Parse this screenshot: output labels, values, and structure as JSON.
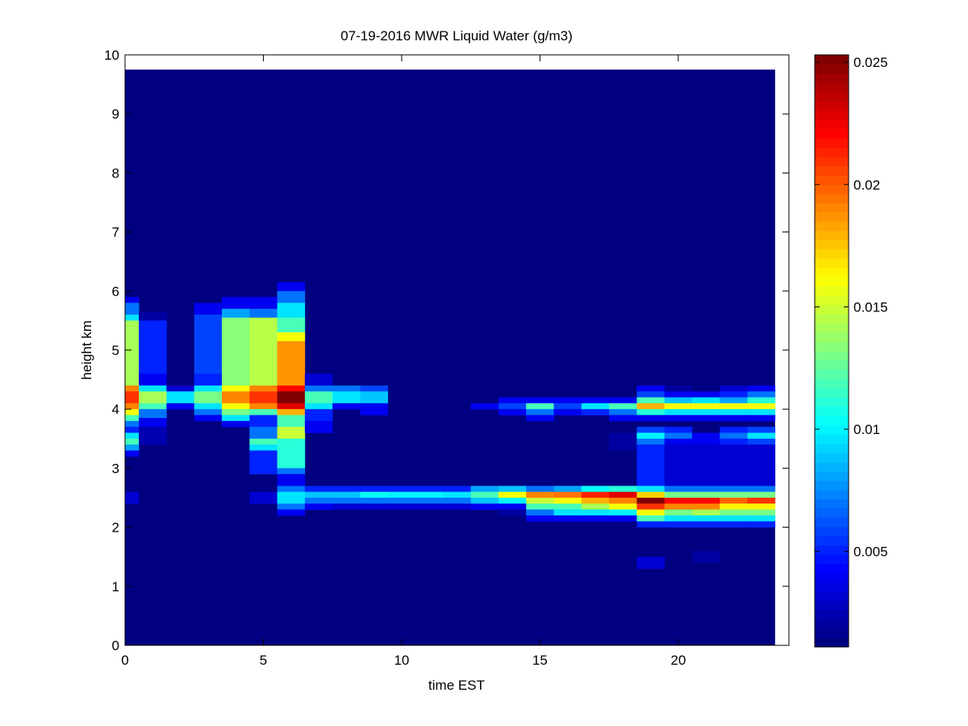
{
  "chart_data": {
    "type": "heatmap",
    "title": "07-19-2016 MWR Liquid Water (g/m3)",
    "xlabel": "time EST",
    "ylabel": "height km",
    "xlim": [
      0,
      24
    ],
    "ylim": [
      0,
      10
    ],
    "xticks": [
      "0",
      "5",
      "10",
      "15",
      "20"
    ],
    "yticks": [
      "0",
      "1",
      "2",
      "3",
      "4",
      "5",
      "6",
      "7",
      "8",
      "9",
      "10"
    ],
    "colormap": "jet",
    "clim": [
      0.0011,
      0.0253
    ],
    "colorbar_ticks": [
      "0.005",
      "0.01",
      "0.015",
      "0.02",
      "0.025"
    ],
    "colorbar_tick_values": [
      0.005,
      0.01,
      0.015,
      0.02,
      0.025
    ],
    "data_time_range": [
      0,
      23.5
    ],
    "data_height_range": [
      0,
      9.75
    ],
    "background_value": 0.0011,
    "time": [
      0,
      1,
      2,
      3,
      4,
      5,
      6,
      7,
      8,
      9,
      10,
      11,
      12,
      13,
      14,
      15,
      16,
      17,
      18,
      19,
      20,
      21,
      22,
      23
    ],
    "segments_note_units": "[height_bottom_km, height_top_km, liquid_water_g_m3]",
    "segments": [
      [
        [
          5.8,
          5.9,
          0.004
        ],
        [
          5.6,
          5.8,
          0.007
        ],
        [
          5.5,
          5.6,
          0.0095
        ],
        [
          4.4,
          5.5,
          0.014
        ],
        [
          4.3,
          4.4,
          0.019
        ],
        [
          4.1,
          4.3,
          0.021
        ],
        [
          4.0,
          4.1,
          0.019
        ],
        [
          3.9,
          4.0,
          0.016
        ],
        [
          3.8,
          3.9,
          0.012
        ],
        [
          3.7,
          3.8,
          0.007
        ],
        [
          3.6,
          3.7,
          0.005
        ],
        [
          3.5,
          3.6,
          0.0095
        ],
        [
          3.4,
          3.5,
          0.012
        ],
        [
          3.3,
          3.4,
          0.008
        ],
        [
          3.2,
          3.3,
          0.004
        ],
        [
          2.4,
          2.6,
          0.003
        ]
      ],
      [
        [
          5.5,
          5.65,
          0.002
        ],
        [
          4.6,
          5.5,
          0.005
        ],
        [
          4.4,
          4.6,
          0.004
        ],
        [
          4.3,
          4.4,
          0.0095
        ],
        [
          4.1,
          4.3,
          0.014
        ],
        [
          4.0,
          4.1,
          0.012
        ],
        [
          3.85,
          4.0,
          0.007
        ],
        [
          3.7,
          3.85,
          0.004
        ],
        [
          3.4,
          3.7,
          0.0025
        ]
      ],
      [
        [
          4.3,
          4.4,
          0.003
        ],
        [
          4.1,
          4.3,
          0.0095
        ],
        [
          4.0,
          4.1,
          0.004
        ]
      ],
      [
        [
          5.6,
          5.8,
          0.004
        ],
        [
          4.6,
          5.6,
          0.006
        ],
        [
          4.4,
          4.6,
          0.005
        ],
        [
          4.3,
          4.4,
          0.0095
        ],
        [
          4.1,
          4.3,
          0.013
        ],
        [
          4.0,
          4.1,
          0.0095
        ],
        [
          3.9,
          4.0,
          0.007
        ],
        [
          3.8,
          3.9,
          0.004
        ]
      ],
      [
        [
          5.7,
          5.9,
          0.004
        ],
        [
          5.55,
          5.7,
          0.008
        ],
        [
          4.4,
          5.55,
          0.0135
        ],
        [
          4.3,
          4.4,
          0.016
        ],
        [
          4.1,
          4.3,
          0.019
        ],
        [
          4.0,
          4.1,
          0.016
        ],
        [
          3.9,
          4.0,
          0.013
        ],
        [
          3.8,
          3.9,
          0.0095
        ],
        [
          3.7,
          3.8,
          0.004
        ]
      ],
      [
        [
          5.7,
          5.9,
          0.004
        ],
        [
          5.55,
          5.7,
          0.007
        ],
        [
          4.4,
          5.55,
          0.0145
        ],
        [
          4.3,
          4.4,
          0.019
        ],
        [
          4.1,
          4.3,
          0.021
        ],
        [
          4.0,
          4.1,
          0.019
        ],
        [
          3.9,
          4.0,
          0.012
        ],
        [
          3.7,
          3.9,
          0.005
        ],
        [
          3.5,
          3.7,
          0.007
        ],
        [
          3.4,
          3.5,
          0.012
        ],
        [
          3.3,
          3.4,
          0.0095
        ],
        [
          2.9,
          3.3,
          0.005
        ],
        [
          2.4,
          2.6,
          0.003
        ]
      ],
      [
        [
          6.0,
          6.15,
          0.004
        ],
        [
          5.8,
          6.0,
          0.007
        ],
        [
          5.55,
          5.8,
          0.0095
        ],
        [
          5.3,
          5.55,
          0.012
        ],
        [
          5.15,
          5.3,
          0.016
        ],
        [
          4.4,
          5.15,
          0.0185
        ],
        [
          4.3,
          4.4,
          0.022
        ],
        [
          4.1,
          4.3,
          0.025
        ],
        [
          4.0,
          4.1,
          0.023
        ],
        [
          3.9,
          4.0,
          0.018
        ],
        [
          3.7,
          3.9,
          0.012
        ],
        [
          3.5,
          3.7,
          0.015
        ],
        [
          3.0,
          3.5,
          0.011
        ],
        [
          2.9,
          3.0,
          0.007
        ],
        [
          2.7,
          2.9,
          0.004
        ],
        [
          2.6,
          2.7,
          0.007
        ],
        [
          2.4,
          2.6,
          0.0095
        ],
        [
          2.3,
          2.4,
          0.007
        ],
        [
          2.2,
          2.3,
          0.004
        ]
      ],
      [
        [
          4.4,
          4.6,
          0.003
        ],
        [
          4.3,
          4.4,
          0.007
        ],
        [
          4.1,
          4.3,
          0.012
        ],
        [
          4.0,
          4.1,
          0.0095
        ],
        [
          3.8,
          4.0,
          0.005
        ],
        [
          3.6,
          3.8,
          0.004
        ],
        [
          2.6,
          2.7,
          0.005
        ],
        [
          2.5,
          2.6,
          0.009
        ],
        [
          2.4,
          2.5,
          0.007
        ],
        [
          2.3,
          2.4,
          0.004
        ]
      ],
      [
        [
          4.3,
          4.4,
          0.007
        ],
        [
          4.1,
          4.3,
          0.0095
        ],
        [
          4.0,
          4.1,
          0.004
        ],
        [
          2.6,
          2.7,
          0.005
        ],
        [
          2.5,
          2.6,
          0.009
        ],
        [
          2.4,
          2.5,
          0.007
        ],
        [
          2.3,
          2.4,
          0.003
        ]
      ],
      [
        [
          4.3,
          4.4,
          0.006
        ],
        [
          4.1,
          4.3,
          0.009
        ],
        [
          3.9,
          4.1,
          0.004
        ],
        [
          2.6,
          2.7,
          0.005
        ],
        [
          2.5,
          2.6,
          0.0105
        ],
        [
          2.4,
          2.5,
          0.007
        ],
        [
          2.3,
          2.4,
          0.003
        ]
      ],
      [
        [
          2.6,
          2.7,
          0.005
        ],
        [
          2.5,
          2.6,
          0.01
        ],
        [
          2.4,
          2.5,
          0.007
        ],
        [
          2.3,
          2.4,
          0.003
        ]
      ],
      [
        [
          2.6,
          2.7,
          0.005
        ],
        [
          2.5,
          2.6,
          0.01
        ],
        [
          2.4,
          2.5,
          0.007
        ],
        [
          2.3,
          2.4,
          0.003
        ]
      ],
      [
        [
          2.6,
          2.7,
          0.005
        ],
        [
          2.5,
          2.6,
          0.0095
        ],
        [
          2.4,
          2.5,
          0.007
        ],
        [
          2.3,
          2.4,
          0.003
        ]
      ],
      [
        [
          4.0,
          4.1,
          0.004
        ],
        [
          2.6,
          2.7,
          0.008
        ],
        [
          2.5,
          2.6,
          0.012
        ],
        [
          2.4,
          2.5,
          0.009
        ],
        [
          2.3,
          2.4,
          0.004
        ]
      ],
      [
        [
          4.1,
          4.2,
          0.004
        ],
        [
          4.0,
          4.1,
          0.006
        ],
        [
          3.9,
          4.0,
          0.004
        ],
        [
          2.6,
          2.7,
          0.009
        ],
        [
          2.5,
          2.6,
          0.016
        ],
        [
          2.4,
          2.5,
          0.01
        ],
        [
          2.3,
          2.4,
          0.004
        ],
        [
          2.2,
          2.3,
          0.002
        ]
      ],
      [
        [
          4.1,
          4.2,
          0.004
        ],
        [
          4.0,
          4.1,
          0.012
        ],
        [
          3.9,
          4.0,
          0.007
        ],
        [
          3.8,
          3.9,
          0.004
        ],
        [
          2.6,
          2.7,
          0.007
        ],
        [
          2.5,
          2.6,
          0.019
        ],
        [
          2.4,
          2.5,
          0.015
        ],
        [
          2.3,
          2.4,
          0.012
        ],
        [
          2.2,
          2.3,
          0.007
        ],
        [
          2.1,
          2.2,
          0.004
        ]
      ],
      [
        [
          4.1,
          4.2,
          0.004
        ],
        [
          4.0,
          4.1,
          0.006
        ],
        [
          3.9,
          4.0,
          0.004
        ],
        [
          2.6,
          2.7,
          0.008
        ],
        [
          2.5,
          2.6,
          0.0195
        ],
        [
          2.4,
          2.5,
          0.016
        ],
        [
          2.3,
          2.4,
          0.012
        ],
        [
          2.2,
          2.3,
          0.0095
        ],
        [
          2.1,
          2.2,
          0.004
        ]
      ],
      [
        [
          4.1,
          4.2,
          0.004
        ],
        [
          4.0,
          4.1,
          0.0095
        ],
        [
          3.9,
          4.0,
          0.005
        ],
        [
          2.6,
          2.7,
          0.0105
        ],
        [
          2.5,
          2.6,
          0.0215
        ],
        [
          2.4,
          2.5,
          0.018
        ],
        [
          2.3,
          2.4,
          0.014
        ],
        [
          2.2,
          2.3,
          0.0095
        ],
        [
          2.1,
          2.2,
          0.004
        ]
      ],
      [
        [
          4.1,
          4.2,
          0.004
        ],
        [
          4.0,
          4.1,
          0.012
        ],
        [
          3.9,
          4.0,
          0.007
        ],
        [
          3.8,
          3.9,
          0.004
        ],
        [
          3.3,
          3.6,
          0.002
        ],
        [
          2.6,
          2.7,
          0.011
        ],
        [
          2.5,
          2.6,
          0.023
        ],
        [
          2.4,
          2.5,
          0.019
        ],
        [
          2.3,
          2.4,
          0.016
        ],
        [
          2.2,
          2.3,
          0.01
        ],
        [
          2.1,
          2.2,
          0.004
        ]
      ],
      [
        [
          4.3,
          4.4,
          0.004
        ],
        [
          4.2,
          4.3,
          0.006
        ],
        [
          4.1,
          4.2,
          0.012
        ],
        [
          4.0,
          4.1,
          0.018
        ],
        [
          3.9,
          4.0,
          0.011
        ],
        [
          3.8,
          3.9,
          0.004
        ],
        [
          3.6,
          3.7,
          0.006
        ],
        [
          3.5,
          3.6,
          0.01
        ],
        [
          3.4,
          3.5,
          0.007
        ],
        [
          2.7,
          3.4,
          0.005
        ],
        [
          2.6,
          2.7,
          0.0095
        ],
        [
          2.5,
          2.6,
          0.017
        ],
        [
          2.4,
          2.5,
          0.025
        ],
        [
          2.3,
          2.4,
          0.021
        ],
        [
          2.2,
          2.3,
          0.016
        ],
        [
          2.1,
          2.2,
          0.012
        ],
        [
          2.0,
          2.1,
          0.005
        ],
        [
          1.3,
          1.5,
          0.003
        ]
      ],
      [
        [
          4.3,
          4.4,
          0.002
        ],
        [
          4.2,
          4.3,
          0.004
        ],
        [
          4.1,
          4.2,
          0.009
        ],
        [
          4.0,
          4.1,
          0.016
        ],
        [
          3.9,
          4.0,
          0.0095
        ],
        [
          3.8,
          3.9,
          0.004
        ],
        [
          3.6,
          3.7,
          0.005
        ],
        [
          3.5,
          3.6,
          0.007
        ],
        [
          3.4,
          3.5,
          0.004
        ],
        [
          2.7,
          3.4,
          0.003
        ],
        [
          2.6,
          2.7,
          0.007
        ],
        [
          2.5,
          2.6,
          0.013
        ],
        [
          2.4,
          2.5,
          0.022
        ],
        [
          2.3,
          2.4,
          0.019
        ],
        [
          2.2,
          2.3,
          0.013
        ],
        [
          2.1,
          2.2,
          0.0095
        ],
        [
          2.0,
          2.1,
          0.005
        ]
      ],
      [
        [
          4.2,
          4.3,
          0.004
        ],
        [
          4.1,
          4.2,
          0.0095
        ],
        [
          4.0,
          4.1,
          0.016
        ],
        [
          3.9,
          4.0,
          0.0095
        ],
        [
          3.8,
          3.9,
          0.004
        ],
        [
          3.4,
          3.6,
          0.004
        ],
        [
          2.7,
          3.4,
          0.003
        ],
        [
          2.6,
          2.7,
          0.007
        ],
        [
          2.5,
          2.6,
          0.013
        ],
        [
          2.4,
          2.5,
          0.022
        ],
        [
          2.3,
          2.4,
          0.019
        ],
        [
          2.2,
          2.3,
          0.014
        ],
        [
          2.1,
          2.2,
          0.0095
        ],
        [
          2.0,
          2.1,
          0.005
        ],
        [
          1.4,
          1.6,
          0.002
        ]
      ],
      [
        [
          4.3,
          4.4,
          0.003
        ],
        [
          4.2,
          4.3,
          0.005
        ],
        [
          4.1,
          4.2,
          0.008
        ],
        [
          4.0,
          4.1,
          0.016
        ],
        [
          3.9,
          4.0,
          0.0095
        ],
        [
          3.8,
          3.9,
          0.004
        ],
        [
          3.6,
          3.7,
          0.005
        ],
        [
          3.5,
          3.6,
          0.007
        ],
        [
          3.4,
          3.5,
          0.005
        ],
        [
          2.7,
          3.4,
          0.003
        ],
        [
          2.6,
          2.7,
          0.007
        ],
        [
          2.5,
          2.6,
          0.013
        ],
        [
          2.4,
          2.5,
          0.02
        ],
        [
          2.3,
          2.4,
          0.0165
        ],
        [
          2.2,
          2.3,
          0.013
        ],
        [
          2.1,
          2.2,
          0.0095
        ],
        [
          2.0,
          2.1,
          0.005
        ]
      ],
      [
        [
          4.3,
          4.4,
          0.004
        ],
        [
          4.2,
          4.3,
          0.007
        ],
        [
          4.1,
          4.2,
          0.011
        ],
        [
          4.0,
          4.1,
          0.016
        ],
        [
          3.9,
          4.0,
          0.0095
        ],
        [
          3.8,
          3.9,
          0.004
        ],
        [
          3.6,
          3.7,
          0.006
        ],
        [
          3.5,
          3.6,
          0.0095
        ],
        [
          3.4,
          3.5,
          0.006
        ],
        [
          2.7,
          3.4,
          0.003
        ],
        [
          2.6,
          2.7,
          0.007
        ],
        [
          2.5,
          2.6,
          0.013
        ],
        [
          2.4,
          2.5,
          0.021
        ],
        [
          2.3,
          2.4,
          0.0165
        ],
        [
          2.2,
          2.3,
          0.013
        ],
        [
          2.1,
          2.2,
          0.0095
        ],
        [
          2.0,
          2.1,
          0.005
        ]
      ]
    ]
  }
}
